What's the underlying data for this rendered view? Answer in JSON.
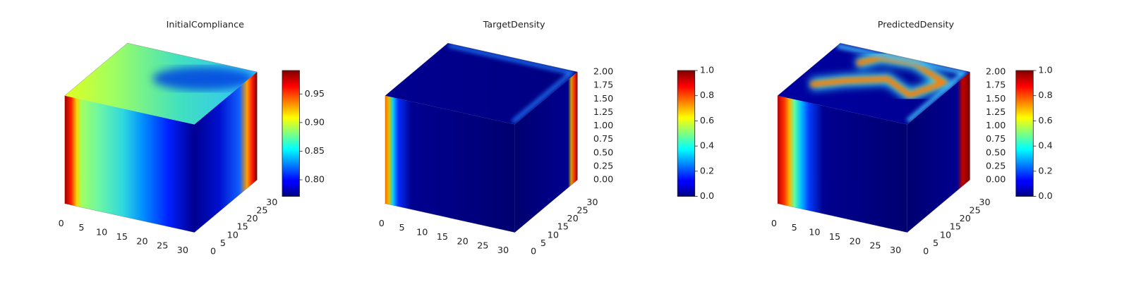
{
  "chart_data": [
    {
      "type": "voxel3d",
      "title": "InitialCompliance",
      "xlim": [
        0,
        32
      ],
      "xticks": [
        0,
        5,
        10,
        15,
        20,
        25,
        30
      ],
      "ylim": [
        0,
        32
      ],
      "yticks": [
        0,
        5,
        10,
        15,
        20,
        25,
        30
      ],
      "colorbar": {
        "colormap": "jet",
        "clim": [
          0.771,
          0.991
        ],
        "ticks": [
          {
            "value": 0.8,
            "label": "0.80"
          },
          0.85,
          {
            "value": 0.9,
            "label": "0.90"
          },
          0.95
        ]
      }
    },
    {
      "type": "voxel3d",
      "title": "TargetDensity",
      "xlim": [
        0,
        32
      ],
      "xticks": [
        0,
        5,
        10,
        15,
        20,
        25,
        30
      ],
      "ylim": [
        0,
        32
      ],
      "yticks": [
        0,
        5,
        10,
        15,
        20,
        25,
        30
      ],
      "zlim": [
        0,
        2
      ],
      "zticks": [
        {
          "value": 0,
          "label": "0.00"
        },
        0.25,
        {
          "value": 0.5,
          "label": "0.50"
        },
        0.75,
        {
          "value": 1,
          "label": "1.00"
        },
        1.25,
        {
          "value": 1.5,
          "label": "1.50"
        },
        1.75,
        {
          "value": 2,
          "label": "2.00"
        }
      ],
      "colorbar": {
        "colormap": "jet",
        "clim": [
          0,
          1
        ],
        "ticks": [
          {
            "value": 0,
            "label": "0.0"
          },
          0.2,
          0.4,
          0.6,
          0.8,
          {
            "value": 1,
            "label": "1.0"
          }
        ]
      }
    },
    {
      "type": "voxel3d",
      "title": "PredictedDensity",
      "xlim": [
        0,
        32
      ],
      "xticks": [
        0,
        5,
        10,
        15,
        20,
        25,
        30
      ],
      "ylim": [
        0,
        32
      ],
      "yticks": [
        0,
        5,
        10,
        15,
        20,
        25,
        30
      ],
      "zlim": [
        0,
        2
      ],
      "zticks": [
        {
          "value": 0,
          "label": "0.00"
        },
        0.25,
        {
          "value": 0.5,
          "label": "0.50"
        },
        0.75,
        {
          "value": 1,
          "label": "1.00"
        },
        1.25,
        {
          "value": 1.5,
          "label": "1.50"
        },
        1.75,
        {
          "value": 2,
          "label": "2.00"
        }
      ],
      "colorbar": {
        "colormap": "jet",
        "clim": [
          0,
          1
        ],
        "ticks": [
          {
            "value": 0,
            "label": "0.0"
          },
          0.2,
          0.4,
          0.6,
          0.8,
          {
            "value": 1,
            "label": "1.0"
          }
        ]
      }
    }
  ]
}
